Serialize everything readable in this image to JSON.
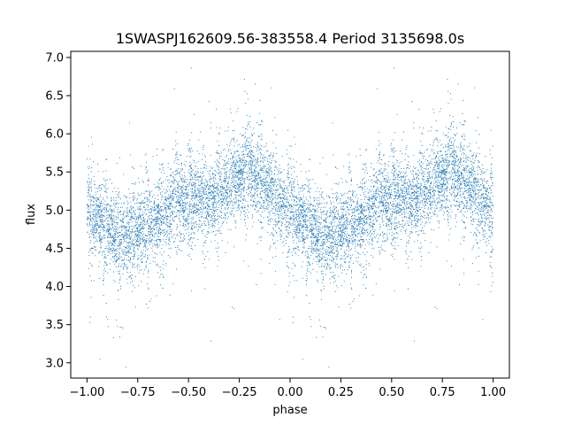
{
  "chart_data": {
    "type": "scatter",
    "title": "1SWASPJ162609.56-383558.4 Period 3135698.0s",
    "xlabel": "phase",
    "ylabel": "flux",
    "xlim": [
      -1.08,
      1.08
    ],
    "ylim": [
      2.8,
      7.08
    ],
    "xticks": [
      -1.0,
      -0.75,
      -0.5,
      -0.25,
      0.0,
      0.25,
      0.5,
      0.75,
      1.0
    ],
    "xtick_labels": [
      "−1.00",
      "−0.75",
      "−0.50",
      "−0.25",
      "0.00",
      "0.25",
      "0.50",
      "0.75",
      "1.00"
    ],
    "yticks": [
      3.0,
      3.5,
      4.0,
      4.5,
      5.0,
      5.5,
      6.0,
      6.5,
      7.0
    ],
    "ytick_labels": [
      "3.0",
      "3.5",
      "4.0",
      "4.5",
      "5.0",
      "5.5",
      "6.0",
      "6.5",
      "7.0"
    ],
    "grid": false,
    "series": [
      {
        "color": "#1f77b4",
        "marker_size": 0.8,
        "phase_curve": {
          "phase": [
            0.0,
            0.05,
            0.1,
            0.15,
            0.2,
            0.25,
            0.3,
            0.35,
            0.4,
            0.45,
            0.5,
            0.55,
            0.6,
            0.65,
            0.7,
            0.75,
            0.8,
            0.85,
            0.9,
            0.95,
            1.0
          ],
          "flux": [
            5.0,
            4.9,
            4.8,
            4.65,
            4.7,
            4.75,
            4.8,
            4.85,
            5.0,
            5.15,
            5.1,
            5.2,
            5.1,
            5.2,
            5.3,
            5.45,
            5.5,
            5.4,
            5.25,
            5.1,
            5.0
          ]
        },
        "mirrored_to": [
          -1.0,
          0.0
        ],
        "scatter_sigma": 0.25,
        "points_per_unit_phase": 4800
      }
    ]
  }
}
